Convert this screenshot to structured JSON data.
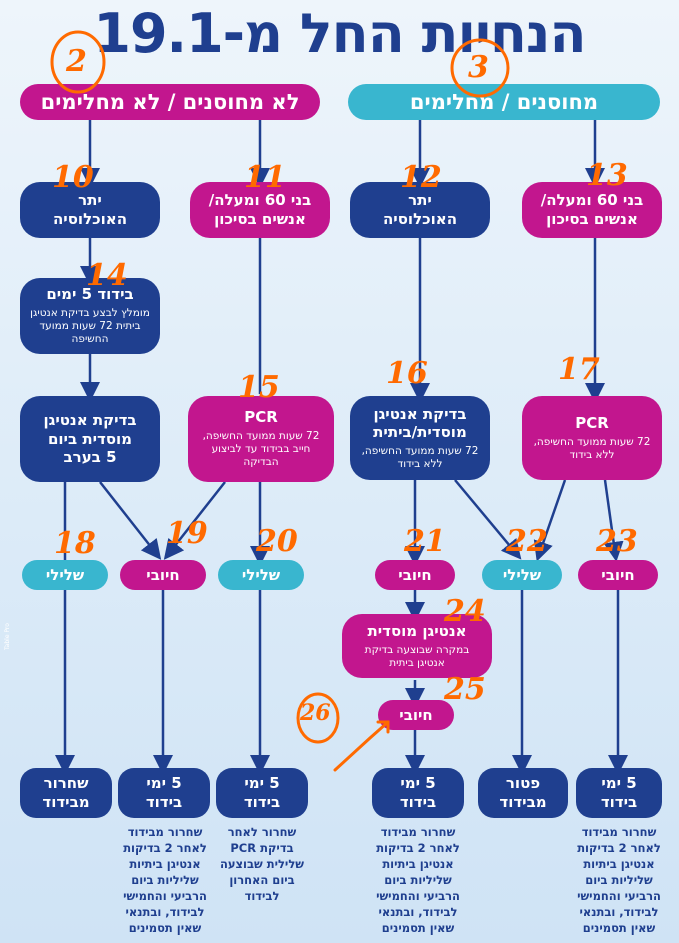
{
  "title": "הנחיות החל מ-19.1",
  "headers": {
    "left": "לא מחוסנים / לא מחלימים",
    "right": "מחוסנים / מחלימים"
  },
  "nodes": {
    "n10": {
      "line1": "יתר",
      "line2": "האוכלוסיה"
    },
    "n11": {
      "line1": "בני 60 ומעלה/",
      "line2": "אנשים בסיכון"
    },
    "n12": {
      "line1": "יתר",
      "line2": "האוכלוסיה"
    },
    "n13": {
      "line1": "בני 60 ומעלה/",
      "line2": "אנשים בסיכון"
    },
    "n14": {
      "title": "בידוד 5 ימים",
      "detail": "מומלץ לבצע בדיקת אנטיגן ביתית 72 שעות ממועד החשיפה"
    },
    "n_antigen_inst": {
      "line1": "בדיקת אנטיגן",
      "line2": "מוסדית ביום",
      "line3": "5 בערב"
    },
    "n15": {
      "title": "PCR",
      "detail": "72 שעות ממועד החשיפה, חייב בבידוד עד לביצוע הבדיקה"
    },
    "n16": {
      "title": "בדיקת אנטיגן מוסדית/ביתית",
      "detail": "72 שעות ממועד החשיפה, ללא בידוד"
    },
    "n17": {
      "title": "PCR",
      "detail": "72 שעות ממועד החשיפה, ללא בידוד"
    },
    "n24": {
      "title": "אנטיגן מוסדית",
      "detail": "במקרה שבוצעה בדיקת אנטיגן ביתית"
    }
  },
  "results": {
    "r18": "שלילי",
    "r19": "חיובי",
    "r20": "שלילי",
    "r21": "חיובי",
    "r22": "שלילי",
    "r23": "חיובי",
    "r25": "חיובי"
  },
  "outcomes": {
    "o1": {
      "line1": "שחרור",
      "line2": "מבידוד"
    },
    "o2": {
      "line1": "5 ימי",
      "line2": "בידוד"
    },
    "o3": {
      "line1": "5 ימי",
      "line2": "בידוד"
    },
    "o4": {
      "line1": "5 ימי",
      "line2": "בידוד"
    },
    "o5": {
      "line1": "פטור",
      "line2": "מבידוד"
    },
    "o6": {
      "line1": "5 ימי",
      "line2": "בידוד"
    }
  },
  "notes": {
    "n2": "שחרור מבידוד לאחר 2 בדיקות אנטיגן ביתיות שליליות ביום הרביעי והחמישי לבידוד, ובתנאי שאין תסמינים",
    "n3": "שחרור לאחר בדיקת PCR שלילית שבוצעה ביום האחרון לבידוד",
    "n4": "שחרור מבידוד לאחר 2 בדיקות אנטיגן ביתיות שליליות ביום הרביעי והחמישי לבידוד, ובתנאי שאין תסמינים",
    "n6": "שחרור מבידוד לאחר 2 בדיקות אנטיגן ביתיות שליליות ביום הרביעי והחמישי לבידוד, ובתנאי שאין תסמינים"
  },
  "handwritten": {
    "h2": "2",
    "h3": "3",
    "h10": "10",
    "h11": "11",
    "h12": "12",
    "h13": "13",
    "h14": "14",
    "h15": "15",
    "h16": "16",
    "h17": "17",
    "h18": "18",
    "h19": "19",
    "h20": "20",
    "h21": "21",
    "h22": "22",
    "h23": "23",
    "h24": "24",
    "h25": "25",
    "h26": "26"
  },
  "side_credit": "Table Pro",
  "colors": {
    "navy": "#1f3f8f",
    "pink": "#c2168e",
    "cyan": "#39b6cf",
    "annotation": "#ff6a00"
  }
}
